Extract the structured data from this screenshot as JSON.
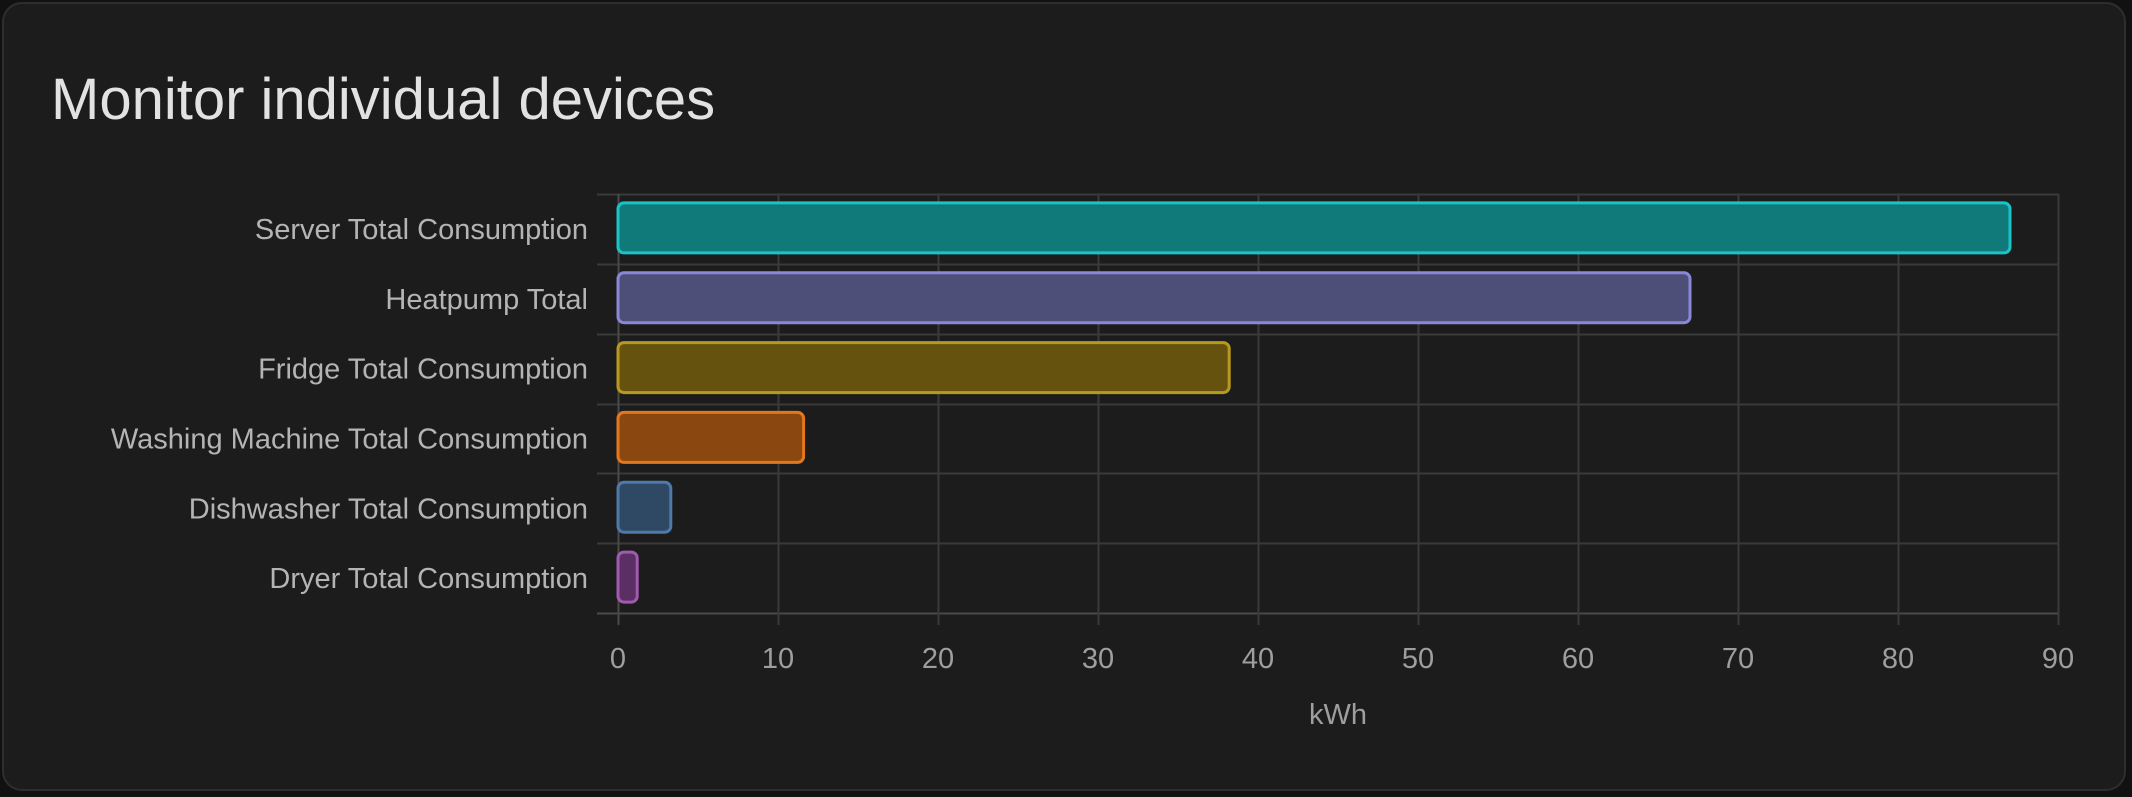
{
  "card": {
    "title": "Monitor individual devices"
  },
  "chart_data": {
    "type": "bar",
    "orientation": "horizontal",
    "categories": [
      "Server Total Consumption",
      "Heatpump Total",
      "Fridge Total Consumption",
      "Washing Machine Total Consumption",
      "Dishwasher Total Consumption",
      "Dryer Total Consumption"
    ],
    "values": [
      87,
      67,
      38.2,
      11.6,
      3.3,
      1.2
    ],
    "colors": [
      {
        "fill": "#10797a",
        "stroke": "#1ac4c6"
      },
      {
        "fill": "#4e4f78",
        "stroke": "#8a88d6"
      },
      {
        "fill": "#65520f",
        "stroke": "#b79a1d"
      },
      {
        "fill": "#8a470f",
        "stroke": "#e3771d"
      },
      {
        "fill": "#2f4965",
        "stroke": "#4d7aa8"
      },
      {
        "fill": "#5b2f63",
        "stroke": "#a05ab0"
      }
    ],
    "title": "Monitor individual devices",
    "xlabel": "kWh",
    "ylabel": "",
    "xlim": [
      0,
      90
    ],
    "xticks": [
      0,
      10,
      20,
      30,
      40,
      50,
      60,
      70,
      80,
      90
    ],
    "grid": true,
    "legend": "none"
  }
}
